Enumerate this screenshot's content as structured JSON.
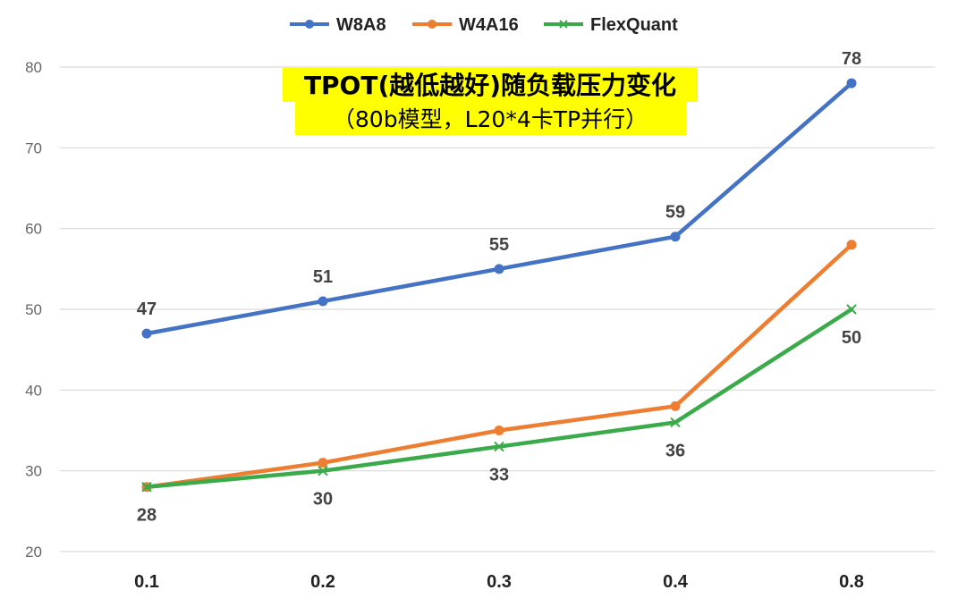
{
  "chart_data": {
    "type": "line",
    "title": "TPOT(越低越好)随负载压力变化",
    "subtitle": "（80b模型，L20*4卡TP并行）",
    "categories": [
      "0.1",
      "0.2",
      "0.3",
      "0.4",
      "0.8"
    ],
    "ylim": [
      20,
      80
    ],
    "yticks": [
      20,
      30,
      40,
      50,
      60,
      70,
      80
    ],
    "grid": true,
    "legend_position": "top-center",
    "series": [
      {
        "name": "W8A8",
        "values": [
          47,
          51,
          55,
          59,
          78
        ],
        "color": "#4472C4",
        "marker": "circle",
        "labels": [
          "47",
          "51",
          "55",
          "59",
          "78"
        ]
      },
      {
        "name": "W4A16",
        "values": [
          28,
          31,
          35,
          38,
          58
        ],
        "color": "#ED7D31",
        "marker": "circle",
        "labels": []
      },
      {
        "name": "FlexQuant",
        "values": [
          28,
          30,
          33,
          36,
          50
        ],
        "color": "#3BAA4A",
        "marker": "x",
        "labels": [
          "28",
          "30",
          "33",
          "36",
          "50"
        ]
      }
    ],
    "title_highlight_color": "#FFFF00"
  }
}
